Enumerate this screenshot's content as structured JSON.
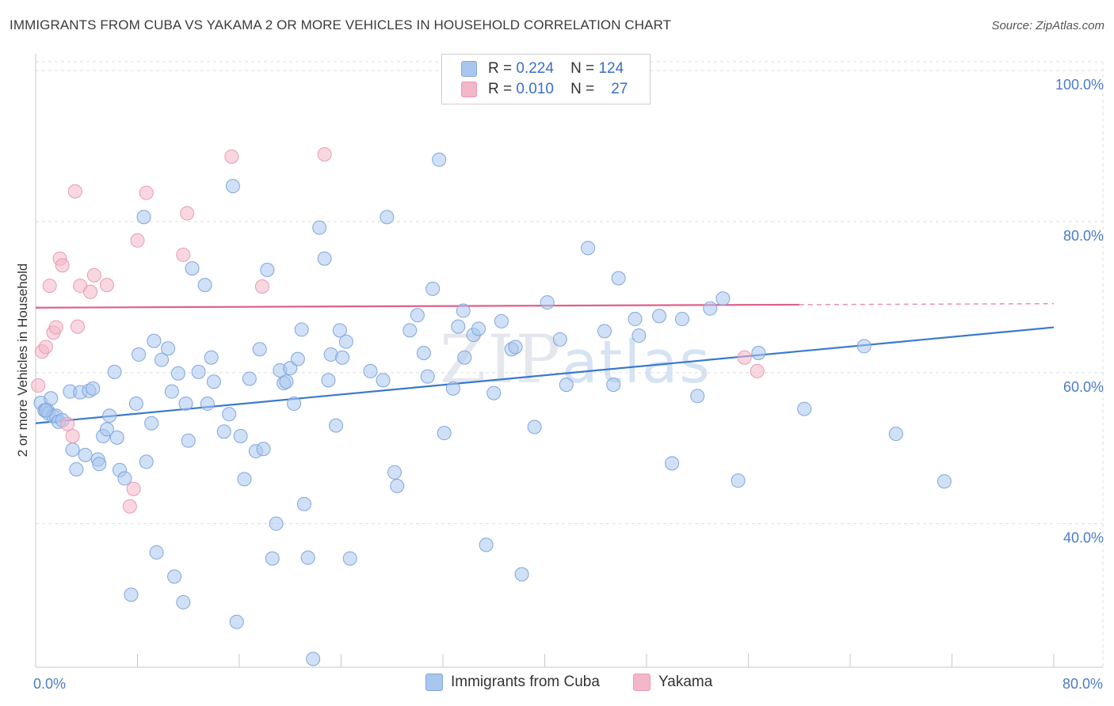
{
  "title": "IMMIGRANTS FROM CUBA VS YAKAMA 2 OR MORE VEHICLES IN HOUSEHOLD CORRELATION CHART",
  "source": "Source: ZipAtlas.com",
  "watermark": {
    "zip": "ZIP",
    "atlas": "atlas"
  },
  "legend": {
    "r_label": "R =",
    "n_label": "N =",
    "rows": [
      {
        "r": "0.224",
        "n": "124",
        "color": "#a9c6ee"
      },
      {
        "r": "0.010",
        "n": "27",
        "color": "#f4b6c9"
      }
    ]
  },
  "bottom_legend": [
    {
      "label": "Immigrants from Cuba",
      "color": "#a9c6ee"
    },
    {
      "label": "Yakama",
      "color": "#f4b6c9"
    }
  ],
  "chart_data": {
    "type": "scatter",
    "title": "IMMIGRANTS FROM CUBA VS YAKAMA 2 OR MORE VEHICLES IN HOUSEHOLD CORRELATION CHART",
    "xlabel": "",
    "ylabel": "2 or more Vehicles in Household",
    "xlim": [
      0,
      80
    ],
    "ylim": [
      21,
      102
    ],
    "x_ticks": [
      {
        "value": 0,
        "label": "0.0%"
      },
      {
        "value": 80,
        "label": "80.0%"
      }
    ],
    "y_ticks": [
      {
        "value": 40,
        "label": "40.0%"
      },
      {
        "value": 60,
        "label": "60.0%"
      },
      {
        "value": 80,
        "label": "80.0%"
      },
      {
        "value": 100,
        "label": "100.0%"
      }
    ],
    "grid": true,
    "legend_position": "top-center",
    "series": [
      {
        "name": "Immigrants from Cuba",
        "color": "#a9c6ee",
        "stroke": "#7fa7dd",
        "trend": {
          "x0": 0,
          "y0": 53.3,
          "x1": 80,
          "y1": 66.0,
          "color": "#3a78cf"
        },
        "points": [
          [
            0.4,
            56.0
          ],
          [
            0.7,
            55.0
          ],
          [
            0.9,
            55.1
          ],
          [
            1.0,
            54.6
          ],
          [
            1.2,
            56.6
          ],
          [
            1.4,
            54.2
          ],
          [
            1.6,
            54.3
          ],
          [
            1.8,
            53.5
          ],
          [
            2.1,
            53.7
          ],
          [
            2.7,
            57.5
          ],
          [
            2.9,
            49.8
          ],
          [
            3.2,
            47.2
          ],
          [
            3.5,
            57.4
          ],
          [
            3.9,
            49.1
          ],
          [
            4.2,
            57.6
          ],
          [
            4.5,
            57.9
          ],
          [
            4.9,
            48.5
          ],
          [
            5.0,
            47.9
          ],
          [
            5.3,
            51.6
          ],
          [
            5.6,
            52.5
          ],
          [
            5.8,
            54.3
          ],
          [
            6.2,
            60.1
          ],
          [
            6.4,
            51.4
          ],
          [
            6.6,
            47.1
          ],
          [
            7.0,
            46.0
          ],
          [
            7.5,
            30.6
          ],
          [
            7.9,
            55.9
          ],
          [
            8.1,
            62.4
          ],
          [
            8.5,
            80.6
          ],
          [
            8.7,
            48.2
          ],
          [
            9.1,
            53.3
          ],
          [
            9.3,
            64.2
          ],
          [
            9.5,
            36.2
          ],
          [
            9.9,
            61.7
          ],
          [
            10.4,
            63.2
          ],
          [
            10.7,
            57.5
          ],
          [
            10.9,
            33.0
          ],
          [
            11.2,
            59.9
          ],
          [
            11.6,
            29.6
          ],
          [
            11.8,
            55.9
          ],
          [
            12.0,
            51.0
          ],
          [
            12.3,
            73.8
          ],
          [
            12.8,
            60.1
          ],
          [
            13.3,
            71.6
          ],
          [
            13.5,
            55.9
          ],
          [
            13.8,
            62.0
          ],
          [
            14.0,
            58.8
          ],
          [
            14.8,
            52.2
          ],
          [
            15.2,
            54.5
          ],
          [
            15.5,
            84.7
          ],
          [
            15.8,
            27.0
          ],
          [
            16.1,
            51.6
          ],
          [
            16.4,
            45.9
          ],
          [
            16.8,
            59.2
          ],
          [
            17.3,
            49.6
          ],
          [
            17.6,
            63.1
          ],
          [
            17.9,
            49.9
          ],
          [
            18.2,
            73.6
          ],
          [
            18.6,
            35.4
          ],
          [
            18.9,
            40.0
          ],
          [
            19.2,
            60.3
          ],
          [
            19.5,
            58.6
          ],
          [
            19.7,
            58.8
          ],
          [
            20.0,
            60.6
          ],
          [
            20.3,
            55.9
          ],
          [
            20.6,
            61.8
          ],
          [
            20.9,
            65.7
          ],
          [
            21.1,
            42.6
          ],
          [
            21.4,
            35.5
          ],
          [
            21.8,
            22.1
          ],
          [
            22.3,
            79.2
          ],
          [
            22.7,
            75.1
          ],
          [
            23.0,
            59.0
          ],
          [
            23.2,
            62.4
          ],
          [
            23.6,
            53.0
          ],
          [
            23.9,
            65.6
          ],
          [
            24.1,
            62.0
          ],
          [
            24.4,
            64.1
          ],
          [
            24.7,
            35.4
          ],
          [
            26.3,
            60.2
          ],
          [
            27.3,
            59.0
          ],
          [
            27.6,
            80.6
          ],
          [
            28.2,
            46.8
          ],
          [
            28.4,
            45.0
          ],
          [
            29.4,
            65.6
          ],
          [
            30.0,
            67.6
          ],
          [
            30.5,
            62.6
          ],
          [
            30.8,
            59.5
          ],
          [
            31.2,
            71.1
          ],
          [
            31.7,
            88.2
          ],
          [
            32.1,
            52.0
          ],
          [
            32.8,
            57.9
          ],
          [
            33.2,
            66.1
          ],
          [
            33.6,
            68.2
          ],
          [
            33.7,
            62.0
          ],
          [
            34.4,
            65.0
          ],
          [
            34.8,
            65.8
          ],
          [
            35.4,
            37.2
          ],
          [
            36.0,
            57.3
          ],
          [
            36.6,
            66.8
          ],
          [
            37.4,
            63.1
          ],
          [
            37.7,
            63.4
          ],
          [
            38.2,
            33.3
          ],
          [
            39.2,
            52.8
          ],
          [
            40.2,
            69.3
          ],
          [
            41.2,
            64.4
          ],
          [
            41.7,
            58.4
          ],
          [
            43.4,
            76.5
          ],
          [
            44.7,
            65.5
          ],
          [
            45.4,
            58.4
          ],
          [
            45.8,
            72.5
          ],
          [
            47.1,
            67.1
          ],
          [
            47.4,
            64.9
          ],
          [
            49.0,
            67.5
          ],
          [
            50.0,
            48.0
          ],
          [
            50.8,
            67.1
          ],
          [
            52.0,
            56.9
          ],
          [
            53.0,
            68.5
          ],
          [
            54.0,
            69.8
          ],
          [
            55.2,
            45.7
          ],
          [
            56.8,
            62.6
          ],
          [
            60.4,
            55.2
          ],
          [
            65.1,
            63.5
          ],
          [
            67.6,
            51.9
          ],
          [
            71.4,
            45.6
          ],
          [
            0.8,
            55.0
          ]
        ]
      },
      {
        "name": "Yakama",
        "color": "#f4b6c9",
        "stroke": "#e99ab2",
        "trend": {
          "x0": 0,
          "y0": 68.6,
          "x1": 60,
          "y1": 69.0,
          "color": "#e0608a"
        },
        "points": [
          [
            0.2,
            58.3
          ],
          [
            0.5,
            62.8
          ],
          [
            0.8,
            63.4
          ],
          [
            1.1,
            71.5
          ],
          [
            1.4,
            65.3
          ],
          [
            1.6,
            66.0
          ],
          [
            1.9,
            75.1
          ],
          [
            2.1,
            74.2
          ],
          [
            2.5,
            53.2
          ],
          [
            2.9,
            51.6
          ],
          [
            3.1,
            84.0
          ],
          [
            3.3,
            66.1
          ],
          [
            3.5,
            71.5
          ],
          [
            4.3,
            70.7
          ],
          [
            4.6,
            72.9
          ],
          [
            5.6,
            71.6
          ],
          [
            7.4,
            42.3
          ],
          [
            7.7,
            44.6
          ],
          [
            8.0,
            77.5
          ],
          [
            8.7,
            83.8
          ],
          [
            11.6,
            75.6
          ],
          [
            11.9,
            81.1
          ],
          [
            15.4,
            88.6
          ],
          [
            17.8,
            71.4
          ],
          [
            22.7,
            88.9
          ],
          [
            55.7,
            62.0
          ],
          [
            56.7,
            60.2
          ]
        ]
      }
    ]
  }
}
